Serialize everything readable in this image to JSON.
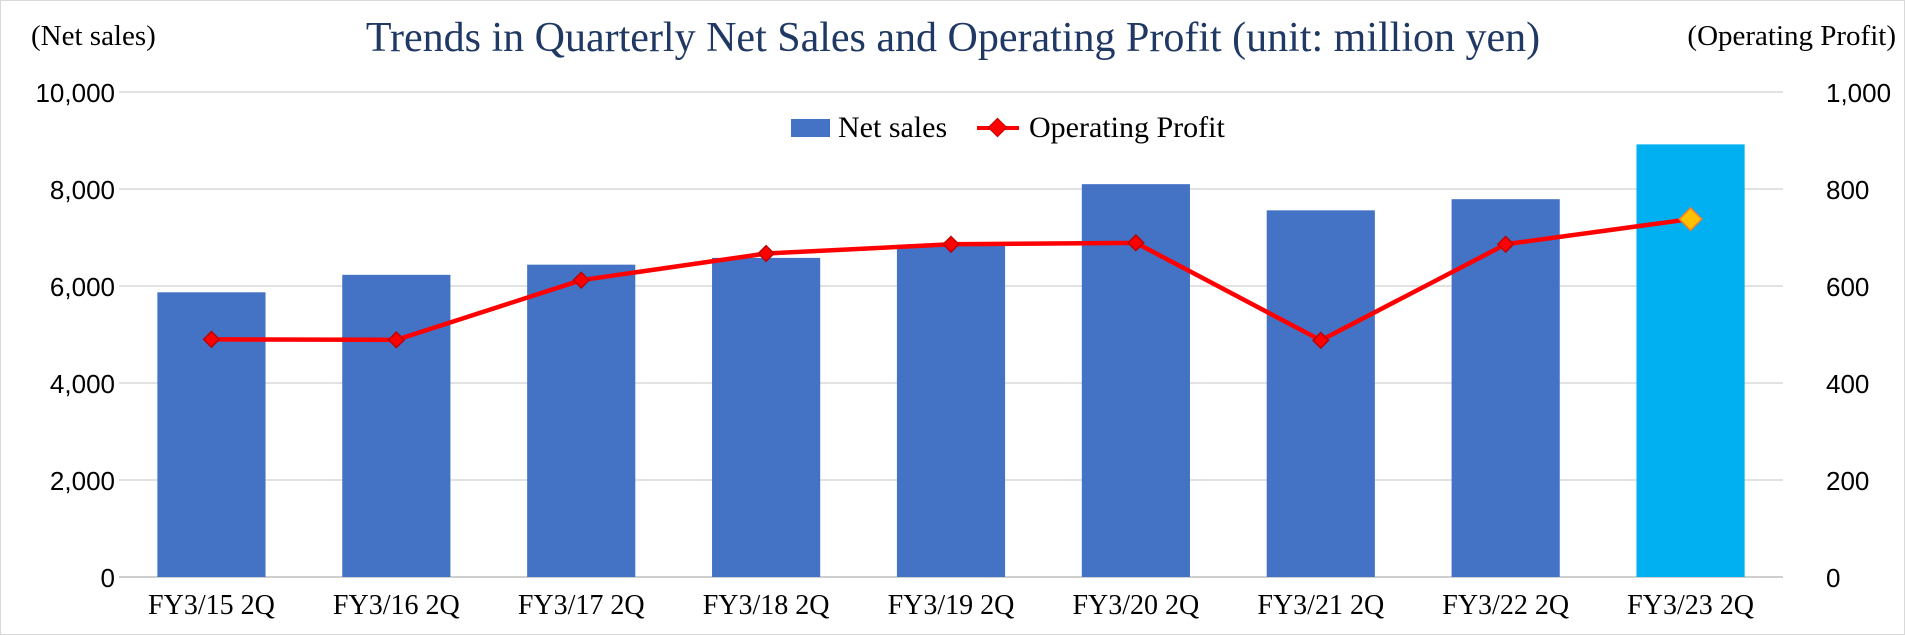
{
  "chart_data": {
    "type": "bar",
    "title": "Trends in Quarterly Net Sales and Operating Profit (unit: million yen)",
    "left_axis_label": "(Net sales)",
    "right_axis_label": "(Operating Profit)",
    "categories": [
      "FY3/15 2Q",
      "FY3/16 2Q",
      "FY3/17 2Q",
      "FY3/18 2Q",
      "FY3/19 2Q",
      "FY3/20 2Q",
      "FY3/21 2Q",
      "FY3/22 2Q",
      "FY3/23 2Q"
    ],
    "ylim_left": [
      0,
      10000
    ],
    "ylim_right": [
      0,
      1000
    ],
    "left_ticks": [
      "0",
      "2,000",
      "4,000",
      "6,000",
      "8,000",
      "10,000"
    ],
    "right_ticks": [
      "0",
      "200",
      "400",
      "600",
      "800",
      "1,000"
    ],
    "series": [
      {
        "name": "Net sales",
        "type": "bar",
        "axis": "left",
        "color": "#4472c4",
        "highlight_color": "#00b0f0",
        "highlight_index": 8,
        "values": [
          5870,
          6230,
          6440,
          6580,
          6850,
          8100,
          7560,
          7790,
          8920
        ]
      },
      {
        "name": "Operating Profit",
        "type": "line",
        "axis": "right",
        "color": "#ff0000",
        "marker_fill": "#ff0000",
        "highlight_marker_fill": "#ffc000",
        "highlight_index": 8,
        "values": [
          490,
          489,
          612,
          667,
          686,
          689,
          488,
          686,
          738
        ]
      }
    ],
    "grid": true,
    "legend": "top-center"
  }
}
